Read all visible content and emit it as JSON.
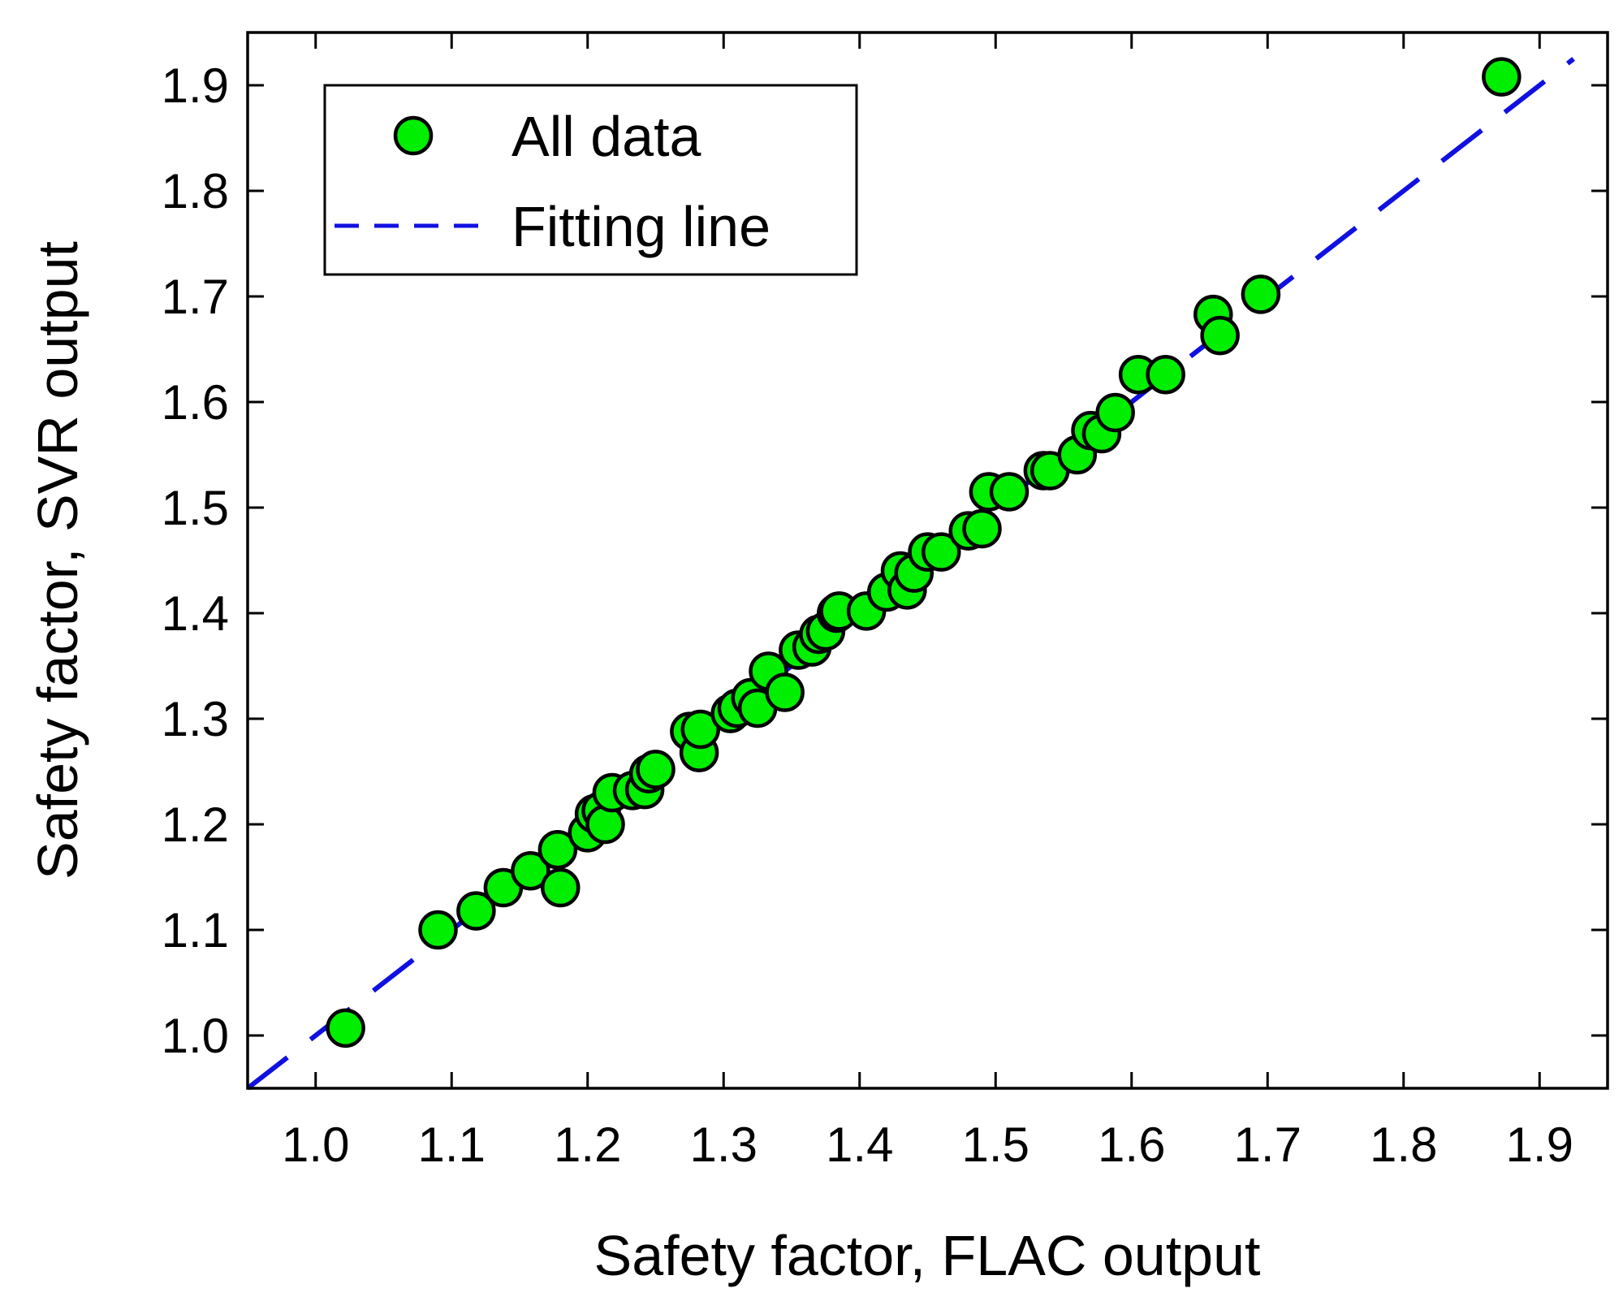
{
  "chart_data": {
    "type": "scatter",
    "title": "",
    "xlabel": "Safety factor, FLAC output",
    "ylabel": "Safety factor, SVR output",
    "xlim": [
      0.95,
      1.95
    ],
    "ylim": [
      0.95,
      1.95
    ],
    "xticks": [
      1.0,
      1.1,
      1.2,
      1.3,
      1.4,
      1.5,
      1.6,
      1.7,
      1.8,
      1.9
    ],
    "yticks": [
      1.0,
      1.1,
      1.2,
      1.3,
      1.4,
      1.5,
      1.6,
      1.7,
      1.8,
      1.9
    ],
    "xtick_labels": [
      "1.0",
      "1.1",
      "1.2",
      "1.3",
      "1.4",
      "1.5",
      "1.6",
      "1.7",
      "1.8",
      "1.9"
    ],
    "ytick_labels": [
      "1.0",
      "1.1",
      "1.2",
      "1.3",
      "1.4",
      "1.5",
      "1.6",
      "1.7",
      "1.8",
      "1.9"
    ],
    "grid": false,
    "legend_position": "top-left",
    "series": [
      {
        "name": "All data",
        "kind": "scatter",
        "color": "#00ee00",
        "edge_color": "#000000",
        "x": [
          1.022,
          1.09,
          1.118,
          1.138,
          1.158,
          1.178,
          1.18,
          1.2,
          1.205,
          1.21,
          1.213,
          1.218,
          1.233,
          1.242,
          1.245,
          1.25,
          1.275,
          1.282,
          1.283,
          1.305,
          1.31,
          1.32,
          1.325,
          1.333,
          1.345,
          1.355,
          1.365,
          1.37,
          1.375,
          1.383,
          1.385,
          1.405,
          1.42,
          1.43,
          1.435,
          1.44,
          1.45,
          1.46,
          1.48,
          1.49,
          1.495,
          1.51,
          1.535,
          1.54,
          1.56,
          1.57,
          1.578,
          1.588,
          1.605,
          1.625,
          1.66,
          1.665,
          1.695,
          1.872
        ],
        "y": [
          1.007,
          1.1,
          1.118,
          1.14,
          1.156,
          1.176,
          1.14,
          1.192,
          1.21,
          1.213,
          1.2,
          1.23,
          1.232,
          1.233,
          1.248,
          1.252,
          1.288,
          1.268,
          1.29,
          1.305,
          1.31,
          1.32,
          1.31,
          1.345,
          1.325,
          1.365,
          1.368,
          1.38,
          1.383,
          1.4,
          1.402,
          1.402,
          1.42,
          1.44,
          1.422,
          1.438,
          1.458,
          1.458,
          1.478,
          1.48,
          1.515,
          1.515,
          1.535,
          1.535,
          1.55,
          1.573,
          1.57,
          1.59,
          1.626,
          1.626,
          1.683,
          1.663,
          1.702,
          1.908
        ]
      },
      {
        "name": "Fitting line",
        "kind": "line",
        "style": "dashed",
        "color": "#1010e0",
        "x": [
          0.95,
          1.925
        ],
        "y": [
          0.95,
          1.925
        ]
      }
    ]
  }
}
